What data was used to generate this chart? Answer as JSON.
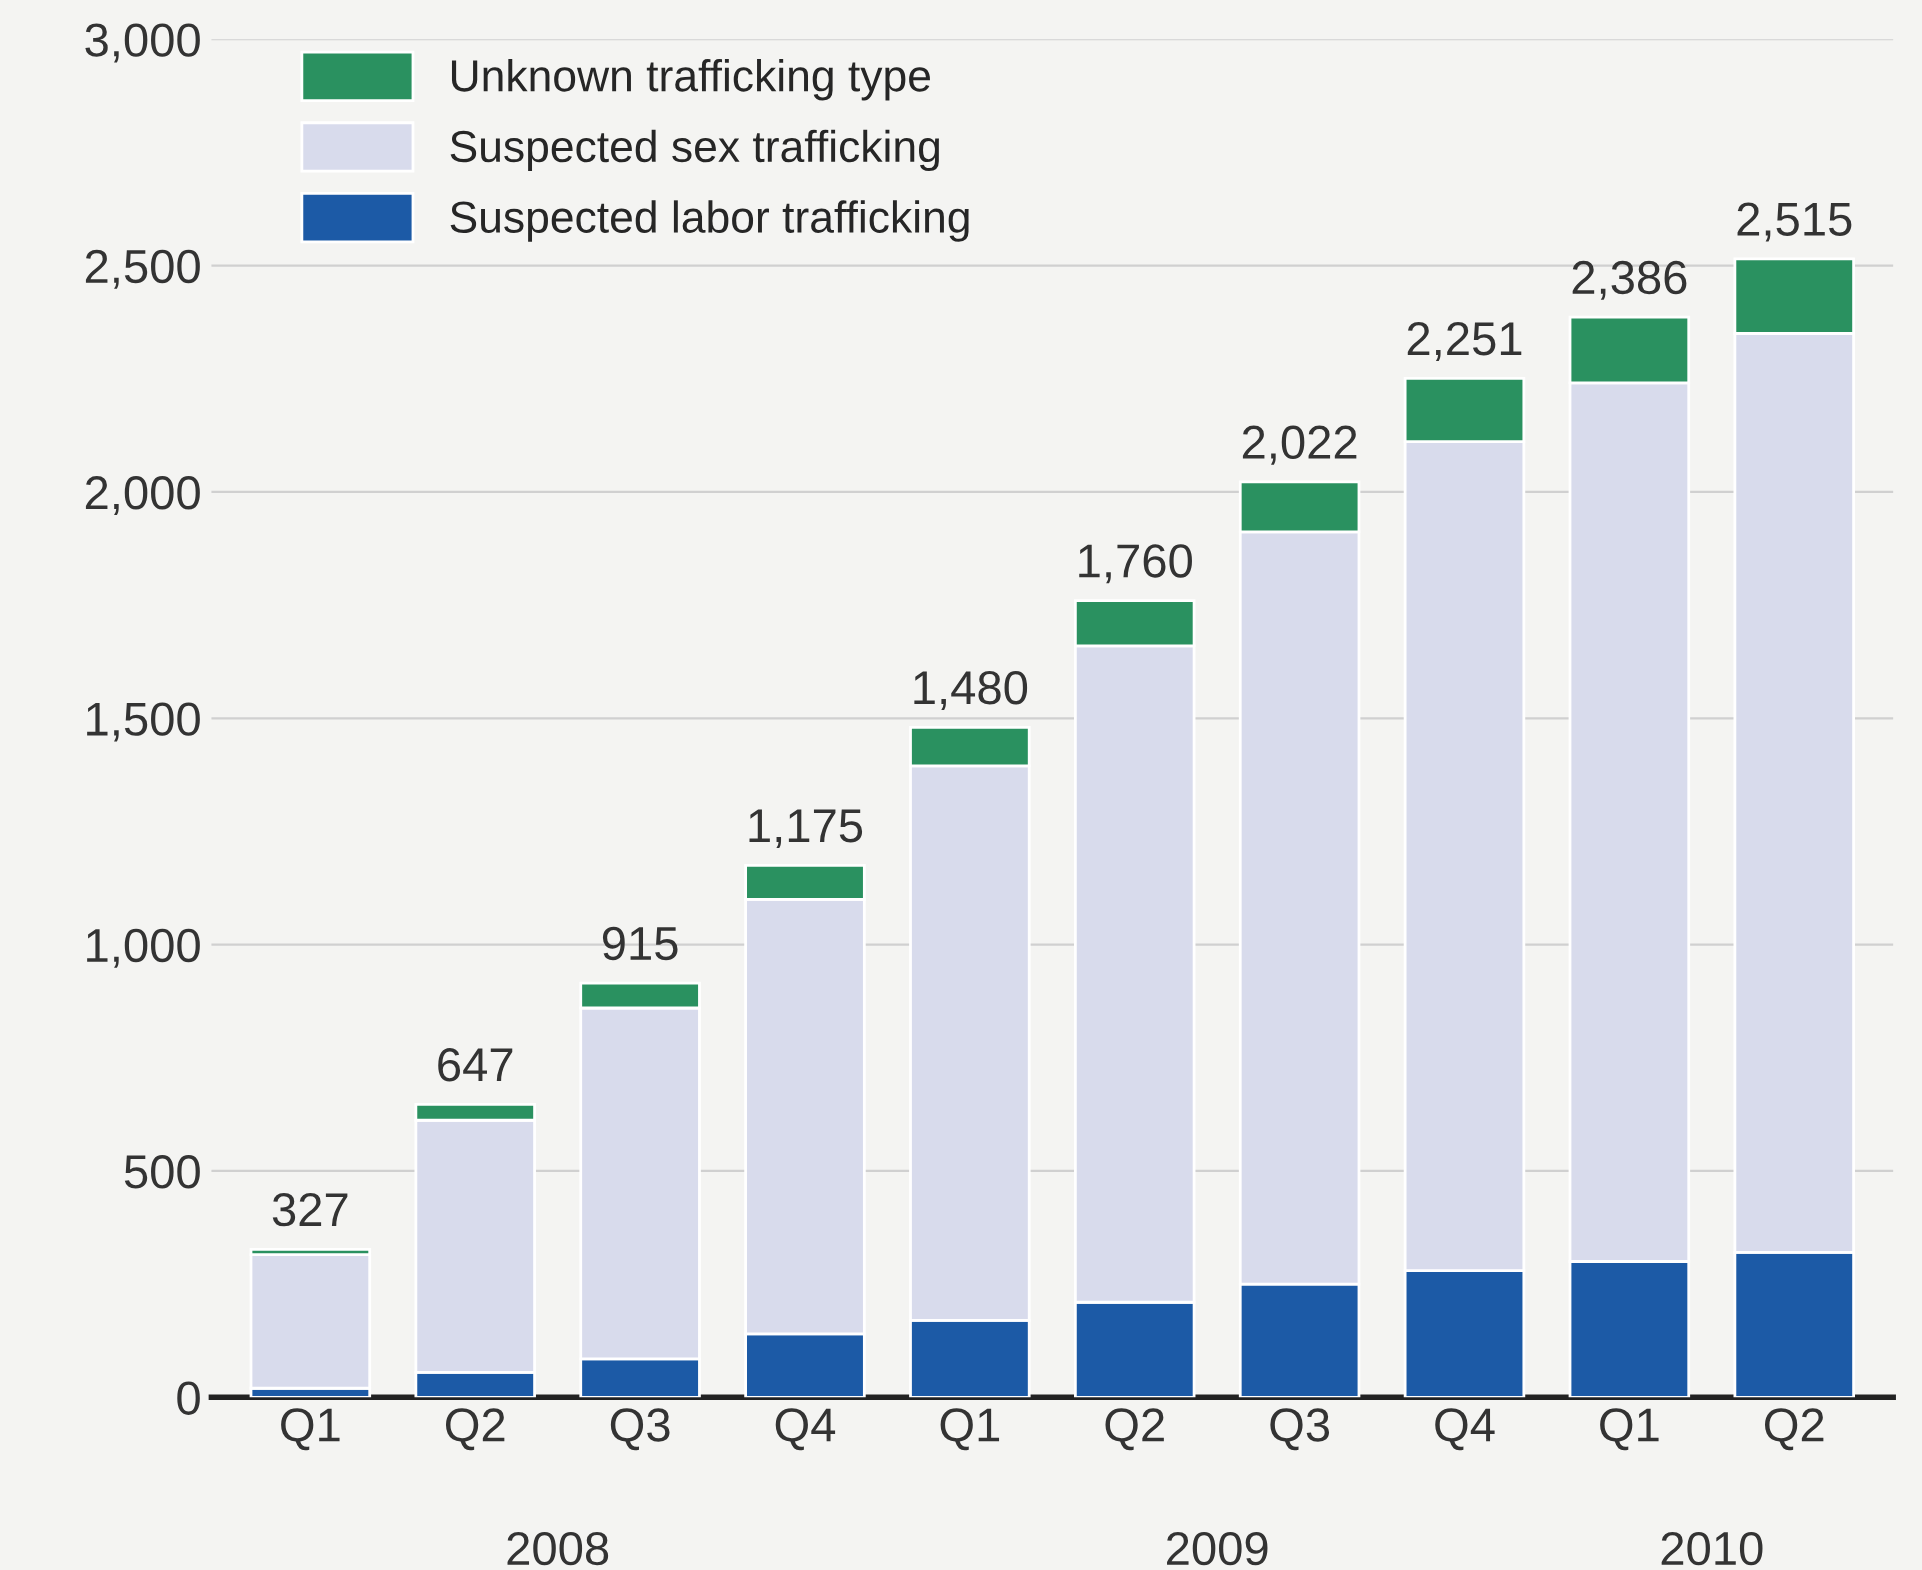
{
  "chart_data": {
    "type": "bar",
    "stacked": true,
    "categories": [
      "Q1",
      "Q2",
      "Q3",
      "Q4",
      "Q1",
      "Q2",
      "Q3",
      "Q4",
      "Q1",
      "Q2"
    ],
    "series": [
      {
        "name": "Suspected labor trafficking",
        "color": "#1c5aa6",
        "values": [
          20,
          55,
          85,
          140,
          170,
          210,
          250,
          280,
          300,
          320
        ]
      },
      {
        "name": "Suspected sex trafficking",
        "color": "#d8dbec",
        "values": [
          295,
          557,
          775,
          960,
          1225,
          1450,
          1662,
          1831,
          1941,
          2030
        ]
      },
      {
        "name": "Unknown trafficking type",
        "color": "#2a9160",
        "values": [
          12,
          35,
          55,
          75,
          85,
          100,
          110,
          140,
          145,
          165
        ]
      }
    ],
    "totals": [
      "327",
      "647",
      "915",
      "1,175",
      "1,480",
      "1,760",
      "2,022",
      "2,251",
      "2,386",
      "2,515"
    ],
    "annotations": [
      "2008",
      "2009",
      "2010"
    ],
    "ylim": [
      0,
      3000
    ],
    "yticks": [
      {
        "value": 0,
        "label": "0"
      },
      {
        "value": 500,
        "label": "500"
      },
      {
        "value": 1000,
        "label": "1,000"
      },
      {
        "value": 1500,
        "label": "1,500"
      },
      {
        "value": 2000,
        "label": "2,000"
      },
      {
        "value": 2500,
        "label": "2,500"
      },
      {
        "value": 3000,
        "label": "3,000"
      }
    ],
    "grid": "y",
    "legend": "top left"
  }
}
